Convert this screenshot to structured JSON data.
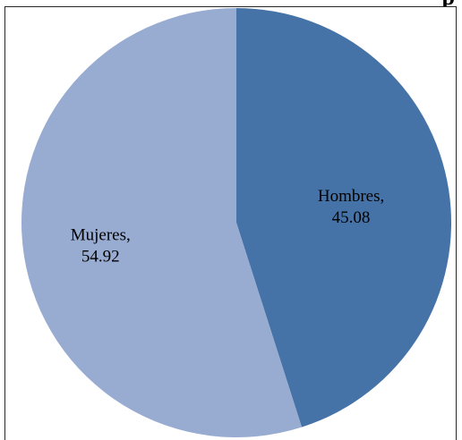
{
  "chart_title_fragment": "p",
  "chart_data": {
    "type": "pie",
    "slices": [
      {
        "label": "Hombres,",
        "value": 45.08,
        "value_text": "45.08",
        "color": "#4573a7"
      },
      {
        "label": "Mujeres,",
        "value": 54.92,
        "value_text": "54.92",
        "color": "#98abd1"
      }
    ],
    "start_angle_deg": 0,
    "direction": "clockwise",
    "legend": "none"
  }
}
